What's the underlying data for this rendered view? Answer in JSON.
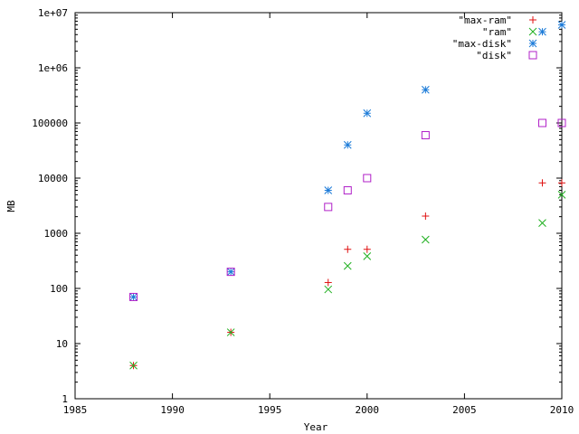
{
  "chart_data": {
    "type": "scatter",
    "xlabel": "Year",
    "ylabel": "MB",
    "xlim": [
      1985,
      2010
    ],
    "ylim": [
      1,
      10000000
    ],
    "yscale": "log",
    "grid": false,
    "legend_position": "top-right",
    "x_ticks": [
      "1985",
      "1990",
      "1995",
      "2000",
      "2005",
      "2010"
    ],
    "y_ticks": [
      "1",
      "10",
      "100",
      "1000",
      "10000",
      "100000",
      "1e+06",
      "1e+07"
    ],
    "series": [
      {
        "name": "\"max-ram\"",
        "marker": "plus",
        "color": "#e01010",
        "points": [
          [
            1988,
            4
          ],
          [
            1993,
            16
          ],
          [
            1998,
            128
          ],
          [
            1999,
            512
          ],
          [
            2000,
            512
          ],
          [
            2003,
            2048
          ],
          [
            2009,
            8192
          ],
          [
            2010,
            8192
          ]
        ]
      },
      {
        "name": "\"ram\"",
        "marker": "cross",
        "color": "#20b020",
        "points": [
          [
            1988,
            4
          ],
          [
            1993,
            16
          ],
          [
            1998,
            96
          ],
          [
            1999,
            256
          ],
          [
            2000,
            384
          ],
          [
            2003,
            768
          ],
          [
            2009,
            1536
          ],
          [
            2010,
            5000
          ]
        ]
      },
      {
        "name": "\"max-disk\"",
        "marker": "star",
        "color": "#1a7ad8",
        "points": [
          [
            1988,
            70
          ],
          [
            1993,
            200
          ],
          [
            1998,
            6000
          ],
          [
            1999,
            40000
          ],
          [
            2000,
            150000
          ],
          [
            2003,
            400000
          ],
          [
            2009,
            4500000
          ],
          [
            2010,
            6000000
          ]
        ]
      },
      {
        "name": "\"disk\"",
        "marker": "square",
        "color": "#b020c8",
        "points": [
          [
            1988,
            70
          ],
          [
            1993,
            200
          ],
          [
            1998,
            3000
          ],
          [
            1999,
            6000
          ],
          [
            2000,
            10000
          ],
          [
            2003,
            60000
          ],
          [
            2009,
            100000
          ],
          [
            2010,
            100000
          ]
        ]
      }
    ]
  }
}
